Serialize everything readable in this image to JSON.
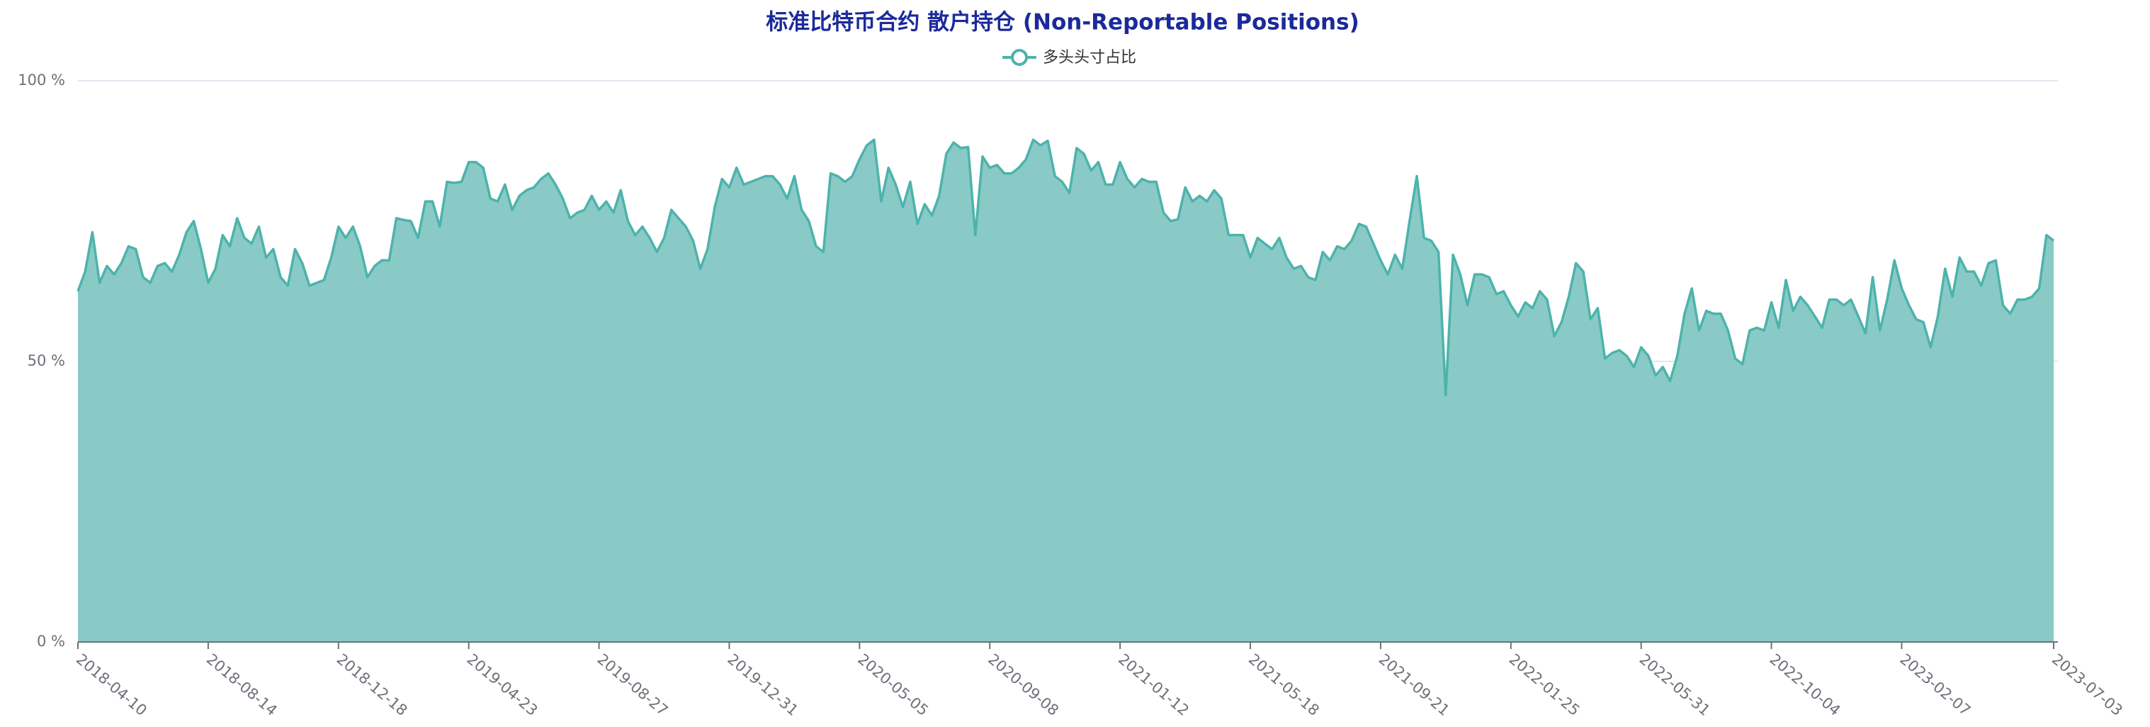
{
  "chart_data": {
    "type": "area",
    "title": "标准比特币合约 散户持仓 (Non-Reportable Positions)",
    "categories": [
      "2018-04-10",
      null,
      null,
      null,
      null,
      null,
      null,
      null,
      null,
      null,
      null,
      null,
      null,
      null,
      null,
      null,
      null,
      null,
      "2018-08-14",
      null,
      null,
      null,
      null,
      null,
      null,
      null,
      null,
      null,
      null,
      null,
      null,
      null,
      null,
      null,
      null,
      null,
      "2018-12-18",
      null,
      null,
      null,
      null,
      null,
      null,
      null,
      null,
      null,
      null,
      null,
      null,
      null,
      null,
      null,
      null,
      null,
      "2019-04-23",
      null,
      null,
      null,
      null,
      null,
      null,
      null,
      null,
      null,
      null,
      null,
      null,
      null,
      null,
      null,
      null,
      null,
      "2019-08-27",
      null,
      null,
      null,
      null,
      null,
      null,
      null,
      null,
      null,
      null,
      null,
      null,
      null,
      null,
      null,
      null,
      null,
      "2019-12-31",
      null,
      null,
      null,
      null,
      null,
      null,
      null,
      null,
      null,
      null,
      null,
      null,
      null,
      null,
      null,
      null,
      null,
      "2020-05-05",
      null,
      null,
      null,
      null,
      null,
      null,
      null,
      null,
      null,
      null,
      null,
      null,
      null,
      null,
      null,
      null,
      null,
      "2020-09-08",
      null,
      null,
      null,
      null,
      null,
      null,
      null,
      null,
      null,
      null,
      null,
      null,
      null,
      null,
      null,
      null,
      null,
      "2021-01-12",
      null,
      null,
      null,
      null,
      null,
      null,
      null,
      null,
      null,
      null,
      null,
      null,
      null,
      null,
      null,
      null,
      null,
      "2021-05-18",
      null,
      null,
      null,
      null,
      null,
      null,
      null,
      null,
      null,
      null,
      null,
      null,
      null,
      null,
      null,
      null,
      null,
      "2021-09-21",
      null,
      null,
      null,
      null,
      null,
      null,
      null,
      null,
      null,
      null,
      null,
      null,
      null,
      null,
      null,
      null,
      null,
      "2022-01-25",
      null,
      null,
      null,
      null,
      null,
      null,
      null,
      null,
      null,
      null,
      null,
      null,
      null,
      null,
      null,
      null,
      null,
      "2022-05-31",
      null,
      null,
      null,
      null,
      null,
      null,
      null,
      null,
      null,
      null,
      null,
      null,
      null,
      null,
      null,
      null,
      null,
      "2022-10-04",
      null,
      null,
      null,
      null,
      null,
      null,
      null,
      null,
      null,
      null,
      null,
      null,
      null,
      null,
      null,
      null,
      null,
      "2023-02-07",
      null,
      null,
      null,
      null,
      null,
      null,
      null,
      null,
      null,
      null,
      null,
      null,
      null,
      null,
      null,
      null,
      null,
      null,
      null,
      null,
      "2023-07-03"
    ],
    "series": [
      {
        "name": "多头头寸占比",
        "color": "#4db3ab",
        "area_color": "#89cac7",
        "values": [
          62.5,
          66,
          73,
          64,
          67,
          65.5,
          67.5,
          70.5,
          70,
          65,
          64,
          67,
          67.5,
          66,
          69,
          73,
          75,
          70,
          64,
          66.5,
          72.5,
          70.5,
          75.5,
          72,
          71,
          74,
          68.5,
          70,
          65,
          63.5,
          70,
          67.5,
          63.5,
          64,
          64.5,
          68.5,
          74,
          72,
          74,
          70.5,
          65,
          67,
          68,
          68,
          75.5,
          75.2,
          75,
          72,
          78.5,
          78.5,
          74,
          82,
          81.8,
          82,
          85.5,
          85.5,
          84.5,
          79,
          78.5,
          81.5,
          77,
          79.5,
          80.5,
          81,
          82.5,
          83.5,
          81.5,
          79,
          75.5,
          76.5,
          77,
          79.5,
          77,
          78.5,
          76.5,
          80.5,
          75,
          72.5,
          74,
          72,
          69.5,
          72,
          77,
          75.5,
          74,
          71.5,
          66.5,
          70,
          77.5,
          82.5,
          81,
          84.5,
          81.5,
          82,
          82.5,
          83,
          83,
          81.5,
          79,
          83,
          77,
          75,
          70.5,
          69.5,
          83.5,
          83,
          82,
          83,
          86,
          88.5,
          89.5,
          78.5,
          84.5,
          81.5,
          77.5,
          82,
          74.5,
          78,
          76,
          79.5,
          87,
          89,
          88,
          88.2,
          72.5,
          86.5,
          84.5,
          85,
          83.5,
          83.5,
          84.5,
          86,
          89.5,
          88.5,
          89.3,
          83,
          82,
          80,
          88,
          87,
          84,
          85.5,
          81.5,
          81.5,
          85.5,
          82.5,
          81,
          82.5,
          82,
          82,
          76.5,
          75,
          75.3,
          81,
          78.5,
          79.5,
          78.5,
          80.5,
          79,
          72.5,
          72.5,
          72.5,
          68.5,
          72,
          71,
          70,
          72,
          68.5,
          66.5,
          67,
          65,
          64.5,
          69.5,
          68,
          70.5,
          70,
          71.5,
          74.5,
          74,
          71,
          68,
          65.5,
          69,
          66.5,
          75,
          83,
          72,
          71.5,
          69.5,
          44,
          69,
          65.5,
          60,
          65.5,
          65.5,
          65,
          62,
          62.5,
          60,
          58,
          60.5,
          59.5,
          62.5,
          61,
          54.5,
          57,
          61.5,
          67.5,
          66,
          57.5,
          59.5,
          50.5,
          51.5,
          52,
          51,
          49,
          52.5,
          51,
          47.5,
          49,
          46.5,
          51,
          58.5,
          63,
          55.5,
          59,
          58.5,
          58.5,
          55.5,
          50.5,
          49.5,
          55.5,
          56,
          55.5,
          60.5,
          56,
          64.5,
          59,
          61.5,
          60,
          58,
          56,
          61,
          61,
          60,
          61,
          58,
          55,
          65,
          55.5,
          61,
          68,
          63,
          60,
          57.5,
          57,
          52.5,
          58,
          66.5,
          61.5,
          68.5,
          66,
          66,
          63.5,
          67.5,
          68,
          60,
          58.5,
          61,
          61,
          61.5,
          63,
          72.5,
          71.5
        ]
      }
    ],
    "ylim": [
      0,
      100
    ],
    "yticks": [
      {
        "value": 0,
        "label": "0 %"
      },
      {
        "value": 50,
        "label": "50 %"
      },
      {
        "value": 100,
        "label": "100 %"
      }
    ],
    "grid": true,
    "legend": "top"
  }
}
